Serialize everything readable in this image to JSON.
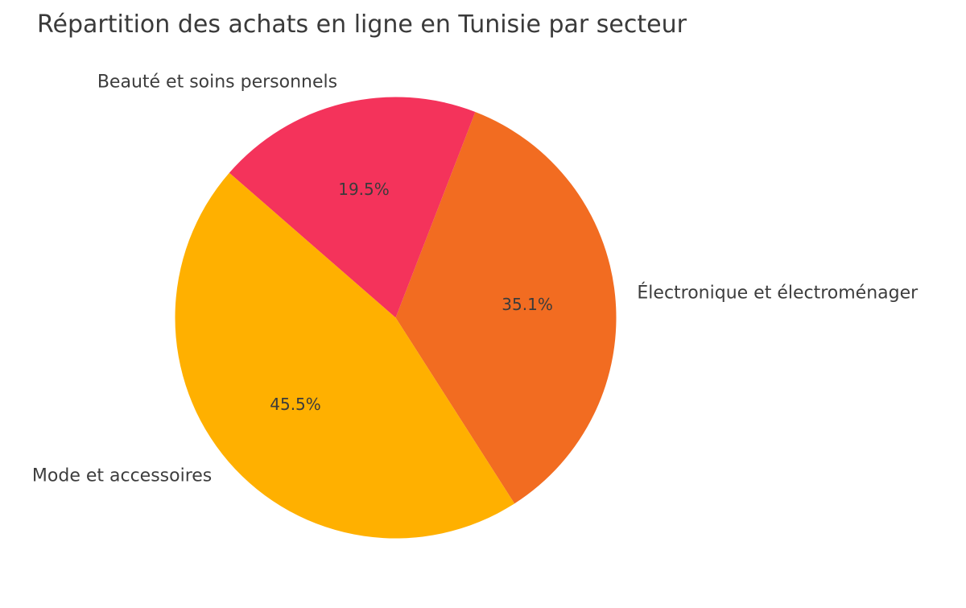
{
  "chart_data": {
    "type": "pie",
    "title": "Répartition des achats en ligne en Tunisie par secteur",
    "slices": [
      {
        "label": "Électronique et électroménager",
        "value": 35.1,
        "pct_label": "35.1%",
        "color": "#F26C21"
      },
      {
        "label": "Beauté et soins personnels",
        "value": 19.5,
        "pct_label": "19.5%",
        "color": "#F4335B"
      },
      {
        "label": "Mode et accessoires",
        "value": 45.5,
        "pct_label": "45.5%",
        "color": "#FFB000"
      }
    ],
    "start_angle_deg": -57.4,
    "direction": "counterclockwise",
    "label_distance": 1.1,
    "pct_distance": 0.6,
    "legend": "none",
    "background_color": "#FFFFFF",
    "title_color": "#3A3A3A",
    "label_text_color": "#3D3D3D",
    "pct_text_color": "#3B3B3B"
  }
}
